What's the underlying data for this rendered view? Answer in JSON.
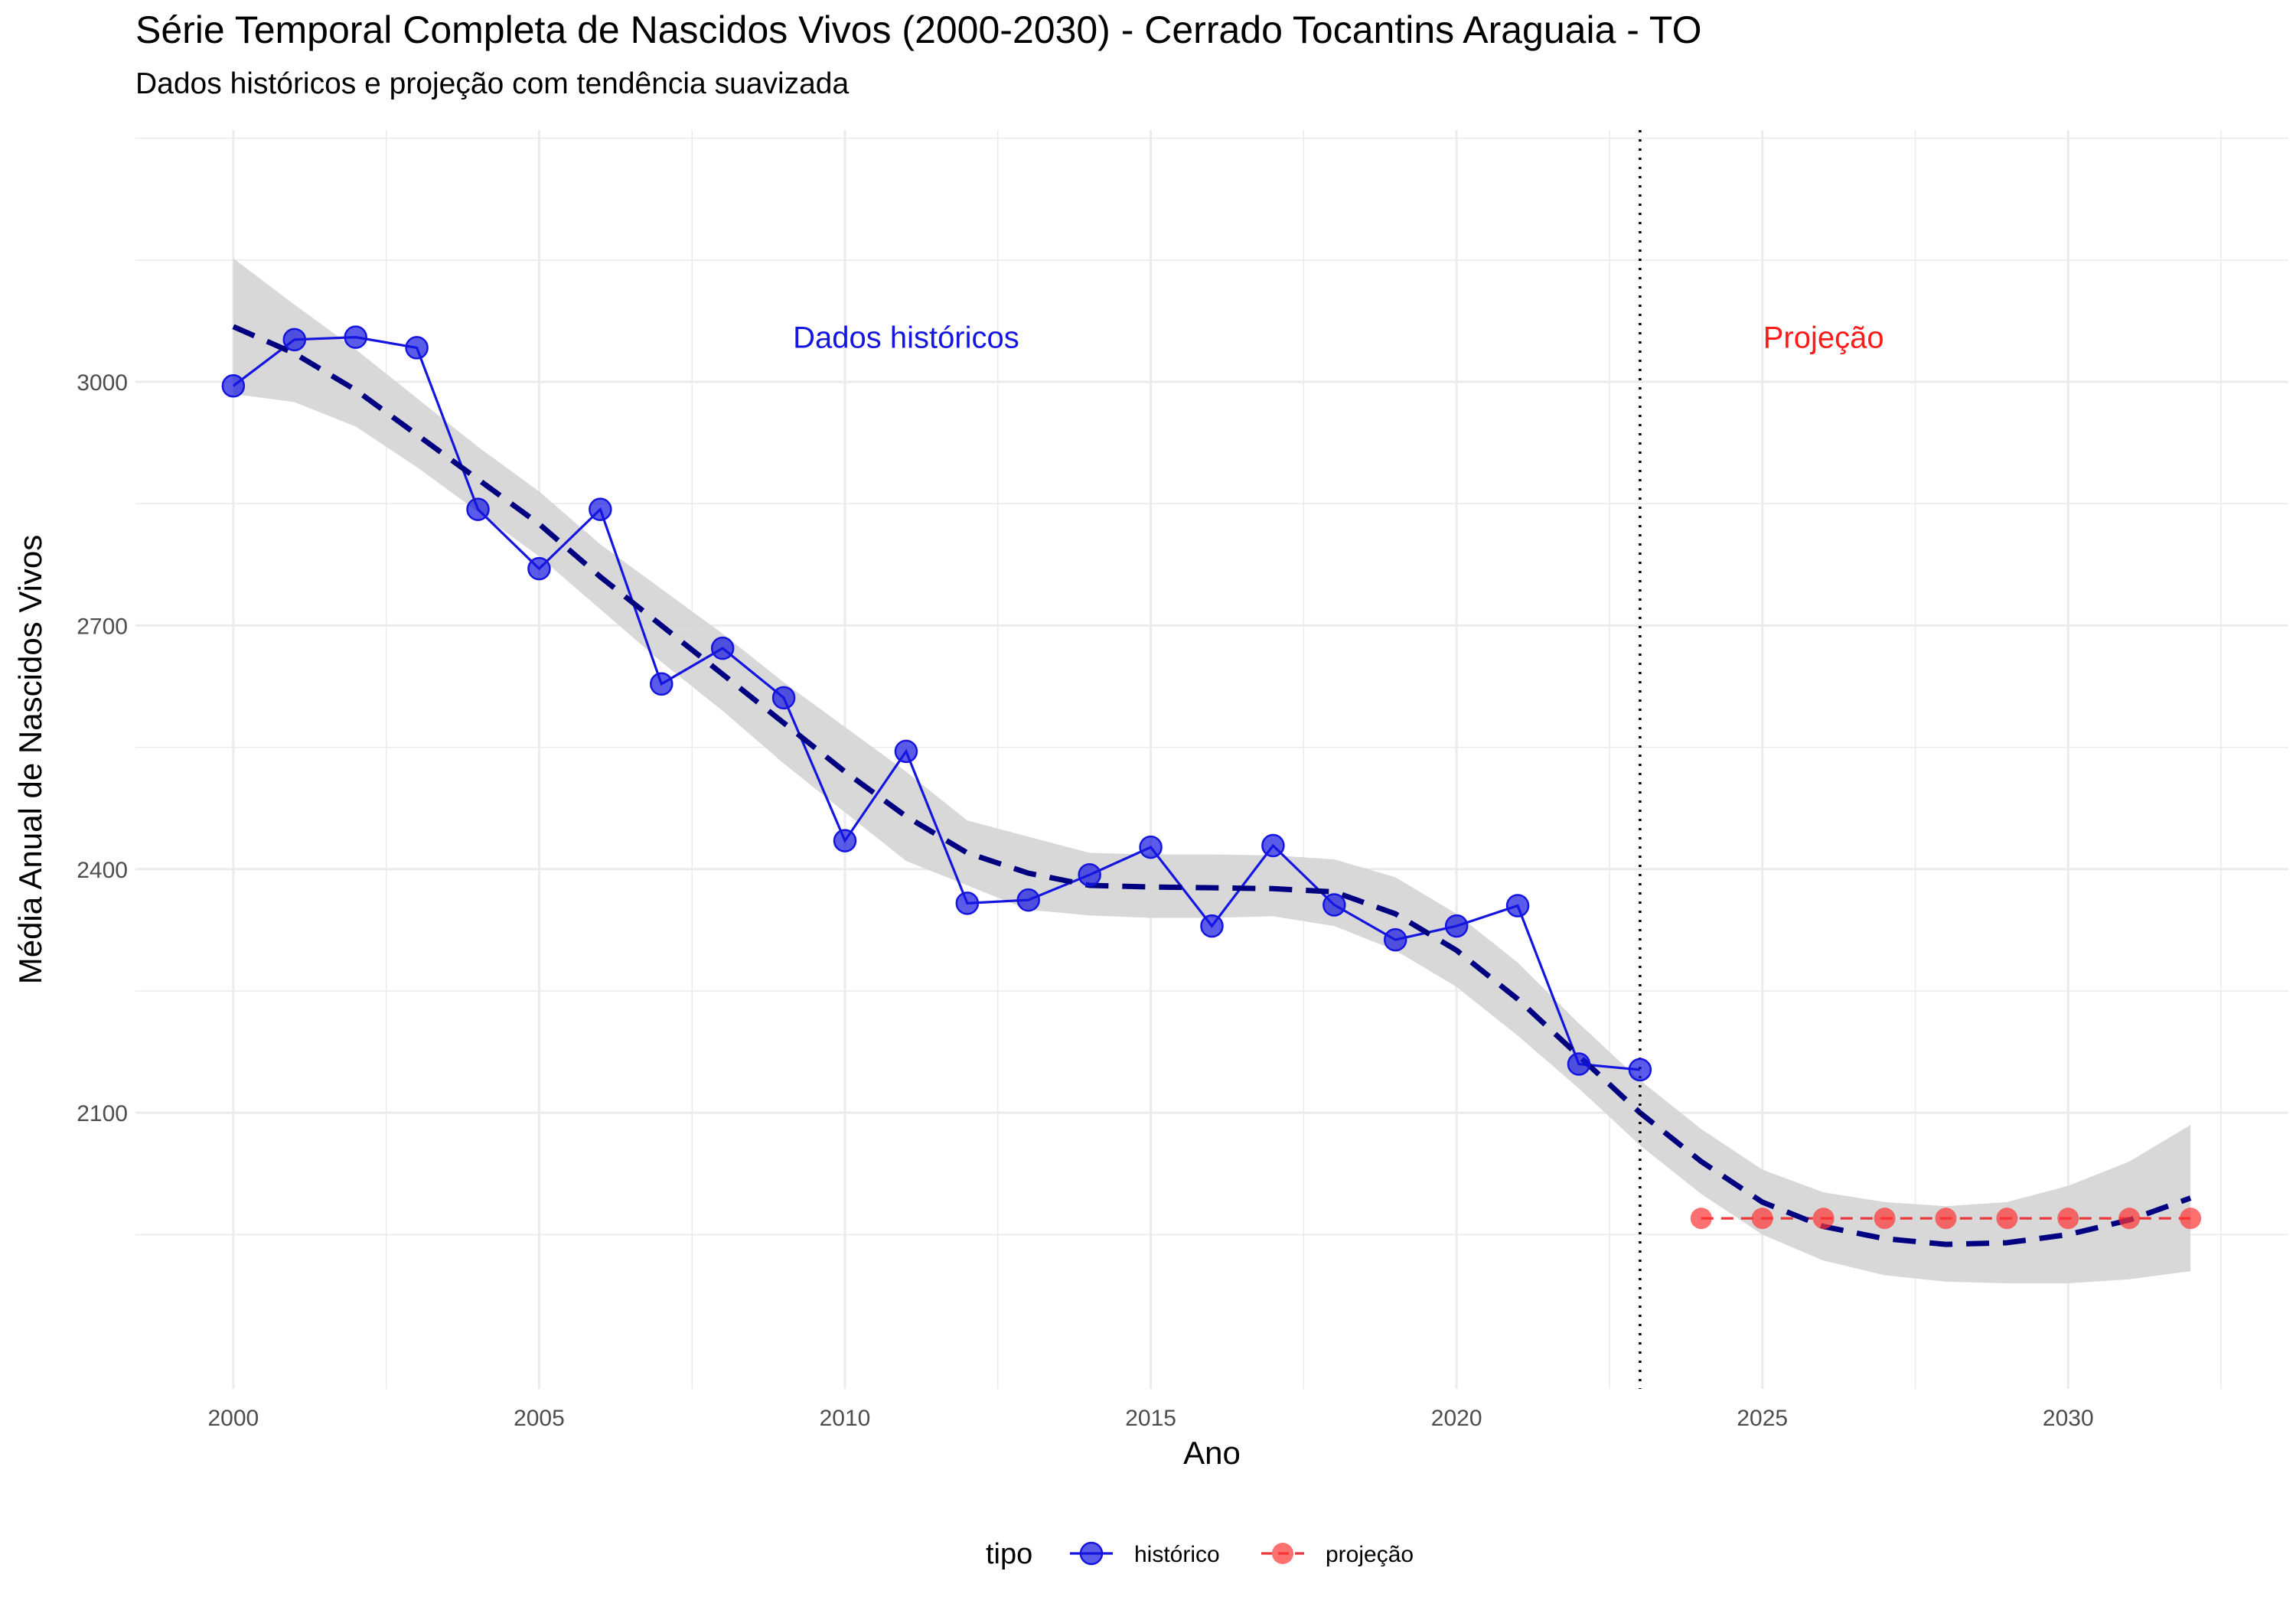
{
  "title": "Série Temporal Completa de Nascidos Vivos (2000-2030) -  Cerrado Tocantins Araguaia - TO",
  "subtitle": "Dados históricos e projeção com tendência suavizada",
  "colors": {
    "historico": "#1515e0",
    "projecao": "#ff3333",
    "trend": "#000080",
    "ribbon": "#d6d6d6",
    "grid": "#ebebeb"
  },
  "chart_data": {
    "type": "line",
    "xlabel": "Ano",
    "ylabel": "Média Anual de Nascidos Vivos",
    "xlim": [
      1998.4,
      2033.6
    ],
    "ylim": [
      1760,
      3310
    ],
    "x_ticks": [
      2000,
      2005,
      2010,
      2015,
      2020,
      2025,
      2030
    ],
    "y_ticks": [
      2100,
      2400,
      2700,
      3000
    ],
    "grid": true,
    "legend_position": "bottom",
    "legend_title": "tipo",
    "series": [
      {
        "name": "histórico",
        "x": [
          2000,
          2001,
          2002,
          2003,
          2004,
          2005,
          2006,
          2007,
          2008,
          2009,
          2010,
          2011,
          2012,
          2013,
          2014,
          2015,
          2016,
          2017,
          2018,
          2019,
          2020,
          2021,
          2022,
          2023
        ],
        "y": [
          2995,
          3052,
          3055,
          3042,
          2843,
          2770,
          2843,
          2628,
          2672,
          2611,
          2435,
          2545,
          2358,
          2362,
          2393,
          2427,
          2330,
          2429,
          2356,
          2313,
          2330,
          2355,
          2160,
          2153
        ]
      },
      {
        "name": "projeção",
        "x": [
          2024,
          2025,
          2026,
          2027,
          2028,
          2029,
          2030,
          2031,
          2032
        ],
        "y": [
          1970,
          1970,
          1970,
          1970,
          1970,
          1970,
          1970,
          1970,
          1970
        ]
      }
    ],
    "trend": {
      "x": [
        2000,
        2001,
        2002,
        2003,
        2004,
        2005,
        2006,
        2007,
        2008,
        2009,
        2010,
        2011,
        2012,
        2013,
        2014,
        2015,
        2016,
        2017,
        2018,
        2019,
        2020,
        2021,
        2022,
        2023,
        2024,
        2025,
        2026,
        2027,
        2028,
        2029,
        2030,
        2031,
        2032
      ],
      "y": [
        3068,
        3035,
        2990,
        2935,
        2880,
        2825,
        2760,
        2700,
        2640,
        2580,
        2520,
        2465,
        2420,
        2395,
        2380,
        2378,
        2377,
        2376,
        2372,
        2345,
        2300,
        2240,
        2170,
        2100,
        2040,
        1990,
        1960,
        1945,
        1938,
        1940,
        1950,
        1968,
        1995
      ],
      "lower": [
        2985,
        2975,
        2945,
        2895,
        2840,
        2785,
        2720,
        2655,
        2595,
        2530,
        2470,
        2410,
        2380,
        2350,
        2343,
        2340,
        2340,
        2342,
        2330,
        2300,
        2255,
        2195,
        2130,
        2060,
        2000,
        1950,
        1918,
        1900,
        1892,
        1890,
        1890,
        1895,
        1905
      ],
      "upper": [
        3152,
        3095,
        3040,
        2980,
        2920,
        2865,
        2800,
        2745,
        2690,
        2630,
        2575,
        2520,
        2460,
        2440,
        2420,
        2418,
        2418,
        2417,
        2412,
        2390,
        2345,
        2285,
        2210,
        2140,
        2080,
        2030,
        2002,
        1990,
        1985,
        1990,
        2010,
        2040,
        2085
      ]
    },
    "vline": {
      "x": 2023
    },
    "annotations": [
      {
        "text": "Dados históricos",
        "x": 2011,
        "y": 3055,
        "color": "#1515e0"
      },
      {
        "text": "Projeção",
        "x": 2026,
        "y": 3055,
        "color": "#ff1a1a"
      }
    ]
  }
}
